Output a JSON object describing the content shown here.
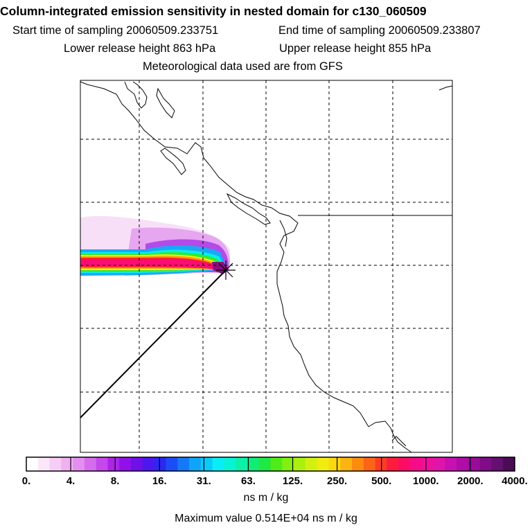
{
  "header": {
    "title": "Column-integrated emission sensitivity in nested domain for c130_060509",
    "start_label": "Start time of sampling 20060509.233751",
    "end_label": "End time of sampling 20060509.233807",
    "lower_label": "Lower release height  863 hPa",
    "upper_label": "Upper release height  855 hPa",
    "met_label": "Meteorological data used are from GFS"
  },
  "colorbar": {
    "ticks": [
      "0.",
      "4.",
      "8.",
      "16.",
      "31.",
      "63.",
      "125.",
      "250.",
      "500.",
      "1000.",
      "2000.",
      "4000."
    ],
    "colors": [
      "#ffffff",
      "#fbe6fb",
      "#f6cdf6",
      "#f0b0f3",
      "#e48ef0",
      "#d56cec",
      "#c448ea",
      "#ad24e8",
      "#8f10e8",
      "#6e10ea",
      "#4c18ee",
      "#2c28f2",
      "#1c4cf6",
      "#1478f8",
      "#10a4f8",
      "#0ccaf8",
      "#08eef4",
      "#08f2d4",
      "#0cf0a8",
      "#10ec78",
      "#20e844",
      "#50ec18",
      "#80f010",
      "#acf010",
      "#d4f010",
      "#f0ec10",
      "#fcd810",
      "#fcb410",
      "#fc8c10",
      "#fc6418",
      "#fc3c24",
      "#fc1c3c",
      "#fc0c64",
      "#f40c88",
      "#ec109c",
      "#e014a8",
      "#c810b0",
      "#b00ca8",
      "#980c98",
      "#800c88",
      "#641070",
      "#4a0c54"
    ],
    "units": "ns m / kg",
    "max_value_label": "Maximum value  0.514E+04 ns m / kg"
  }
}
